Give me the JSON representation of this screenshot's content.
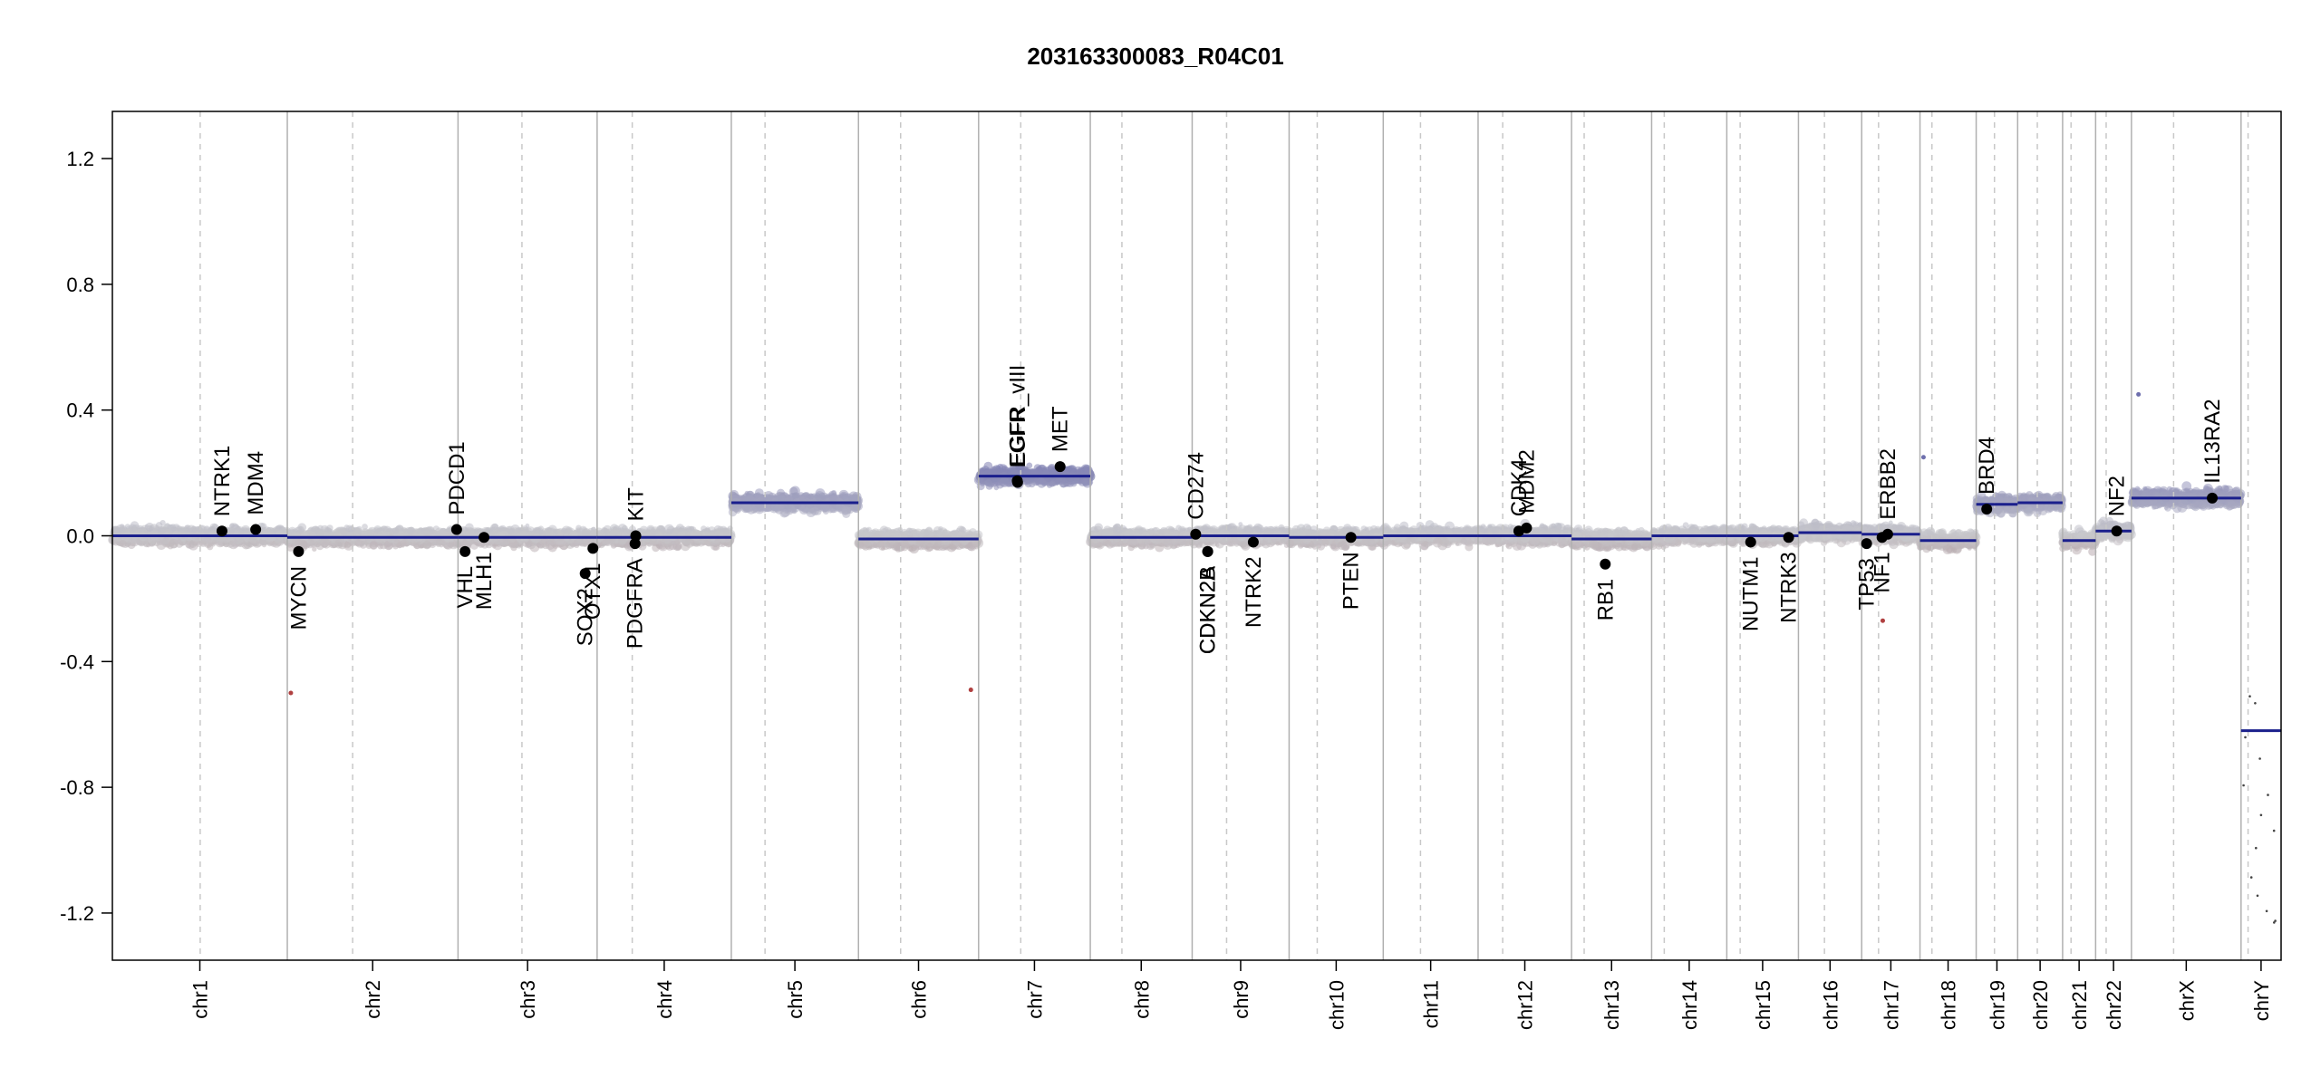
{
  "chart_data": {
    "type": "scatter",
    "title": "203163300083_R04C01",
    "xlabel": "",
    "ylabel": "",
    "ylim": [
      -1.35,
      1.35
    ],
    "yticks": [
      -1.2,
      -0.8,
      -0.4,
      0.0,
      0.4,
      0.8,
      1.2
    ],
    "ytick_labels": [
      "-1.2",
      "-0.8",
      "-0.4",
      "0.0",
      "0.4",
      "0.8",
      "1.2"
    ],
    "x_unit": "Mb (cumulative genome position)",
    "chromosomes": [
      {
        "name": "chr1",
        "label": "chr1",
        "length": 249,
        "centromere": 125
      },
      {
        "name": "chr2",
        "label": "chr2",
        "length": 243,
        "centromere": 93
      },
      {
        "name": "chr3",
        "label": "chr3",
        "length": 198,
        "centromere": 91
      },
      {
        "name": "chr4",
        "label": "chr4",
        "length": 191,
        "centromere": 50
      },
      {
        "name": "chr5",
        "label": "chr5",
        "length": 181,
        "centromere": 48
      },
      {
        "name": "chr6",
        "label": "chr6",
        "length": 171,
        "centromere": 60
      },
      {
        "name": "chr7",
        "label": "chr7",
        "length": 159,
        "centromere": 60
      },
      {
        "name": "chr8",
        "label": "chr8",
        "length": 145,
        "centromere": 45
      },
      {
        "name": "chr9",
        "label": "chr9",
        "length": 138,
        "centromere": 49
      },
      {
        "name": "chr10",
        "label": "chr10",
        "length": 134,
        "centromere": 40
      },
      {
        "name": "chr11",
        "label": "chr11",
        "length": 135,
        "centromere": 53
      },
      {
        "name": "chr12",
        "label": "chr12",
        "length": 133,
        "centromere": 35
      },
      {
        "name": "chr13",
        "label": "chr13",
        "length": 114,
        "centromere": 18
      },
      {
        "name": "chr14",
        "label": "chr14",
        "length": 107,
        "centromere": 18
      },
      {
        "name": "chr15",
        "label": "chr15",
        "length": 102,
        "centromere": 19
      },
      {
        "name": "chr16",
        "label": "chr16",
        "length": 90,
        "centromere": 37
      },
      {
        "name": "chr17",
        "label": "chr17",
        "length": 83,
        "centromere": 24
      },
      {
        "name": "chr18",
        "label": "chr18",
        "length": 80,
        "centromere": 17
      },
      {
        "name": "chr19",
        "label": "chr19",
        "length": 59,
        "centromere": 26
      },
      {
        "name": "chr20",
        "label": "chr20",
        "length": 64,
        "centromere": 28
      },
      {
        "name": "chr21",
        "label": "chr21",
        "length": 47,
        "centromere": 12
      },
      {
        "name": "chr22",
        "label": "chr22",
        "length": 51,
        "centromere": 15
      },
      {
        "name": "chrX",
        "label": "chrX",
        "length": 156,
        "centromere": 60
      },
      {
        "name": "chrY",
        "label": "chrY",
        "length": 57,
        "centromere": 10
      }
    ],
    "segments": [
      {
        "chrom": "chr1",
        "start": 0,
        "end": 249,
        "value": 0.0
      },
      {
        "chrom": "chr2",
        "start": 0,
        "end": 243,
        "value": -0.005
      },
      {
        "chrom": "chr3",
        "start": 0,
        "end": 198,
        "value": -0.005
      },
      {
        "chrom": "chr4",
        "start": 0,
        "end": 191,
        "value": -0.005
      },
      {
        "chrom": "chr5",
        "start": 0,
        "end": 181,
        "value": 0.105
      },
      {
        "chrom": "chr6",
        "start": 0,
        "end": 171,
        "value": -0.01
      },
      {
        "chrom": "chr7",
        "start": 0,
        "end": 159,
        "value": 0.19
      },
      {
        "chrom": "chr8",
        "start": 0,
        "end": 145,
        "value": -0.005
      },
      {
        "chrom": "chr9",
        "start": 0,
        "end": 138,
        "value": 0.0
      },
      {
        "chrom": "chr10",
        "start": 0,
        "end": 134,
        "value": -0.005
      },
      {
        "chrom": "chr11",
        "start": 0,
        "end": 135,
        "value": 0.0
      },
      {
        "chrom": "chr12",
        "start": 0,
        "end": 133,
        "value": 0.0
      },
      {
        "chrom": "chr13",
        "start": 0,
        "end": 114,
        "value": -0.01
      },
      {
        "chrom": "chr14",
        "start": 0,
        "end": 107,
        "value": 0.0
      },
      {
        "chrom": "chr15",
        "start": 0,
        "end": 102,
        "value": 0.0
      },
      {
        "chrom": "chr16",
        "start": 0,
        "end": 90,
        "value": 0.01
      },
      {
        "chrom": "chr17",
        "start": 0,
        "end": 83,
        "value": 0.005
      },
      {
        "chrom": "chr18",
        "start": 0,
        "end": 80,
        "value": -0.015
      },
      {
        "chrom": "chr19",
        "start": 0,
        "end": 59,
        "value": 0.1
      },
      {
        "chrom": "chr20",
        "start": 0,
        "end": 64,
        "value": 0.105
      },
      {
        "chrom": "chr21",
        "start": 0,
        "end": 47,
        "value": -0.015
      },
      {
        "chrom": "chr22",
        "start": 0,
        "end": 51,
        "value": 0.015
      },
      {
        "chrom": "chrX",
        "start": 0,
        "end": 156,
        "value": 0.12
      },
      {
        "chrom": "chrY",
        "start": 0,
        "end": 57,
        "value": -0.62
      }
    ],
    "genes": [
      {
        "name": "NTRK1",
        "chrom": "chr1",
        "pos": 156,
        "value": 0.015
      },
      {
        "name": "MDM4",
        "chrom": "chr1",
        "pos": 204,
        "value": 0.02
      },
      {
        "name": "MYCN",
        "chrom": "chr2",
        "pos": 16,
        "value": -0.05
      },
      {
        "name": "PDCD1",
        "chrom": "chr2",
        "pos": 241,
        "value": 0.02
      },
      {
        "name": "VHL",
        "chrom": "chr3",
        "pos": 10,
        "value": -0.05
      },
      {
        "name": "MLH1",
        "chrom": "chr3",
        "pos": 37,
        "value": -0.005
      },
      {
        "name": "SOX2",
        "chrom": "chr3",
        "pos": 181,
        "value": -0.12
      },
      {
        "name": "OTX1",
        "chrom": "chr2",
        "pos": 0,
        "value": 0.0,
        "hidden": true
      },
      {
        "name": "OTX1",
        "chrom": "chr3",
        "pos": 192,
        "value": -0.04
      },
      {
        "name": "PDGFRA",
        "chrom": "chr4",
        "pos": 54,
        "value": -0.025
      },
      {
        "name": "KIT",
        "chrom": "chr4",
        "pos": 55,
        "value": 0.0
      },
      {
        "name": "EGFR_vIII",
        "chrom": "chr7",
        "pos": 55,
        "value": 0.175
      },
      {
        "name": "EGFR",
        "chrom": "chr7",
        "pos": 55.5,
        "value": 0.17
      },
      {
        "name": "MET",
        "chrom": "chr7",
        "pos": 116,
        "value": 0.22
      },
      {
        "name": "CD274",
        "chrom": "chr9",
        "pos": 5,
        "value": 0.005
      },
      {
        "name": "CDKN2A",
        "chrom": "chr9",
        "pos": 22,
        "value": -0.05
      },
      {
        "name": "CDKN2B",
        "chrom": "chr9",
        "pos": 22.2,
        "value": -0.05
      },
      {
        "name": "NTRK2",
        "chrom": "chr9",
        "pos": 87,
        "value": -0.02
      },
      {
        "name": "PTEN",
        "chrom": "chr10",
        "pos": 88,
        "value": -0.005
      },
      {
        "name": "CDK4",
        "chrom": "chr12",
        "pos": 58,
        "value": 0.015
      },
      {
        "name": "MDM2",
        "chrom": "chr12",
        "pos": 69,
        "value": 0.025
      },
      {
        "name": "RB1",
        "chrom": "chr13",
        "pos": 48,
        "value": -0.09
      },
      {
        "name": "NUTM1",
        "chrom": "chr15",
        "pos": 34,
        "value": -0.02
      },
      {
        "name": "NTRK3",
        "chrom": "chr15",
        "pos": 88,
        "value": -0.005
      },
      {
        "name": "TP53",
        "chrom": "chr17",
        "pos": 7,
        "value": -0.025
      },
      {
        "name": "NF1",
        "chrom": "chr17",
        "pos": 29,
        "value": -0.005
      },
      {
        "name": "ERBB2",
        "chrom": "chr17",
        "pos": 37,
        "value": 0.005
      },
      {
        "name": "BRD4",
        "chrom": "chr19",
        "pos": 15,
        "value": 0.085
      },
      {
        "name": "NF2",
        "chrom": "chr22",
        "pos": 30,
        "value": 0.015
      },
      {
        "name": "IL13RA2",
        "chrom": "chrX",
        "pos": 115,
        "value": 0.12
      }
    ],
    "outliers": [
      {
        "chrom": "chr2",
        "pos": 5,
        "value": -0.5
      },
      {
        "chrom": "chr6",
        "pos": 160,
        "value": -0.49
      },
      {
        "chrom": "chr17",
        "pos": 30,
        "value": -0.27
      },
      {
        "chrom": "chrX",
        "pos": 10,
        "value": 0.45
      },
      {
        "chrom": "chr18",
        "pos": 5,
        "value": 0.25
      }
    ],
    "colors": {
      "segment": "#1a1f8c",
      "gain_point": "#6e6fad",
      "loss_point": "#9c7378",
      "neutral_point": "#c8c8cc",
      "gene_point": "#000000",
      "chrom_boundary": "#b0b0b0",
      "centromere": "#c8c8c8"
    },
    "grid": false
  }
}
